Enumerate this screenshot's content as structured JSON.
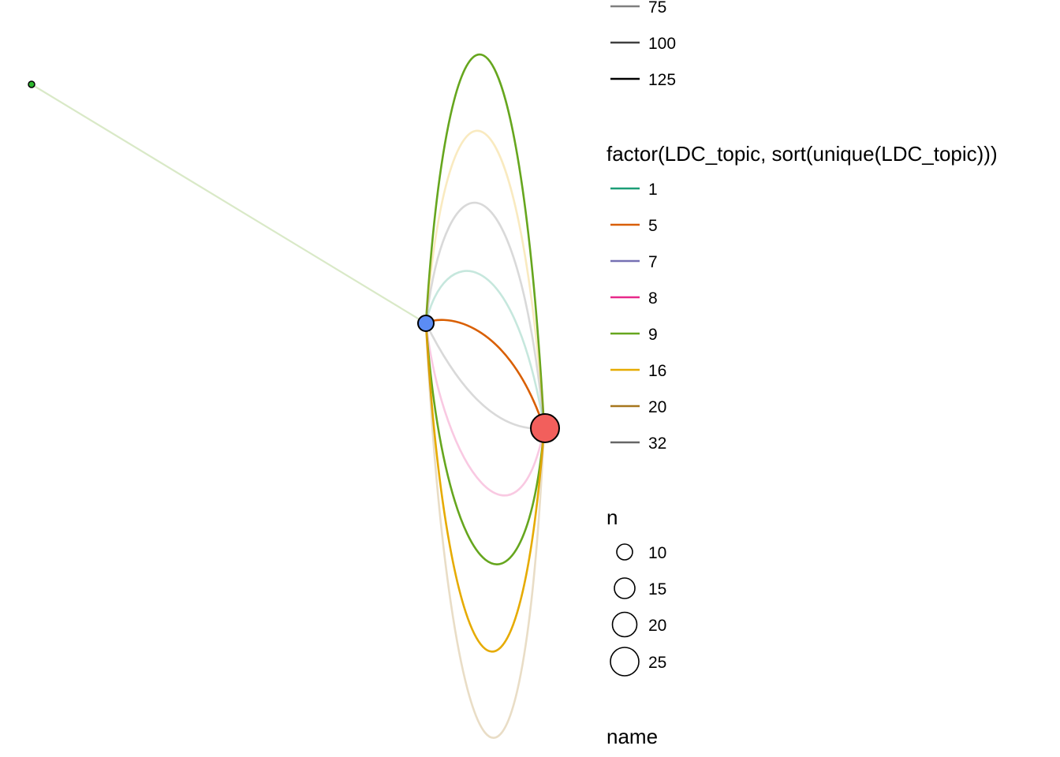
{
  "graph": {
    "nodes": [
      {
        "id": "left",
        "color": "#2eb82e"
      },
      {
        "id": "middle",
        "color": "#5b8cf5"
      },
      {
        "id": "right",
        "color": "#f25f5c"
      }
    ],
    "edges": [
      {
        "from": "left",
        "to": "middle",
        "topic": "9",
        "faded": true
      },
      {
        "from": "middle",
        "to": "right",
        "topic": "9",
        "faded": false
      },
      {
        "from": "middle",
        "to": "right",
        "topic": "16",
        "faded": true
      },
      {
        "from": "middle",
        "to": "right",
        "topic": "32",
        "faded": true
      },
      {
        "from": "middle",
        "to": "right",
        "topic": "1",
        "faded": true
      },
      {
        "from": "middle",
        "to": "right",
        "topic": "5",
        "faded": false
      },
      {
        "from": "middle",
        "to": "right",
        "topic": "32",
        "faded": true
      },
      {
        "from": "middle",
        "to": "right",
        "topic": "8",
        "faded": true
      },
      {
        "from": "middle",
        "to": "right",
        "topic": "9",
        "faded": false
      },
      {
        "from": "middle",
        "to": "right",
        "topic": "16",
        "faded": false
      },
      {
        "from": "middle",
        "to": "right",
        "topic": "20",
        "faded": true
      }
    ]
  },
  "legend": {
    "width": {
      "items": [
        {
          "label": "75",
          "color": "#7f7f7f"
        },
        {
          "label": "100",
          "color": "#3f3f3f"
        },
        {
          "label": "125",
          "color": "#000000"
        }
      ]
    },
    "topic": {
      "title": "factor(LDC_topic, sort(unique(LDC_topic)))",
      "items": [
        {
          "label": "1",
          "color": "#1b9e77"
        },
        {
          "label": "5",
          "color": "#d95f02"
        },
        {
          "label": "7",
          "color": "#7570b3"
        },
        {
          "label": "8",
          "color": "#e7298a"
        },
        {
          "label": "9",
          "color": "#66a61e"
        },
        {
          "label": "16",
          "color": "#e6ab02"
        },
        {
          "label": "20",
          "color": "#a6761d"
        },
        {
          "label": "32",
          "color": "#666666"
        }
      ]
    },
    "n": {
      "title": "n",
      "items": [
        {
          "label": "10"
        },
        {
          "label": "15"
        },
        {
          "label": "20"
        },
        {
          "label": "25"
        }
      ]
    },
    "name": {
      "title": "name"
    }
  }
}
